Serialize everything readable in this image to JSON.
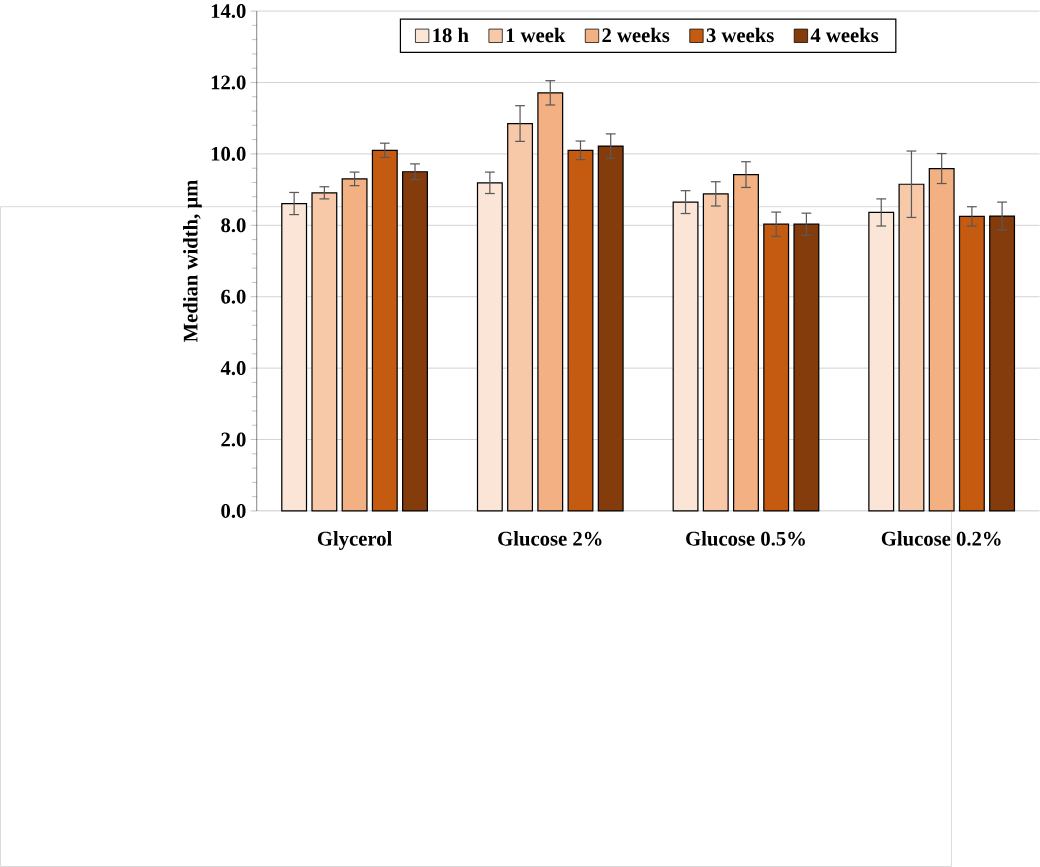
{
  "chart_data": {
    "type": "bar",
    "ylabel": "Median width, μm",
    "categories": [
      "Glycerol",
      "Glucose 2%",
      "Glucose 0.5%",
      "Glucose 0.2%"
    ],
    "series": [
      {
        "name": "18 h",
        "color": "#fae5d6",
        "values": [
          8.61,
          9.19,
          8.65,
          8.36
        ],
        "errors": [
          0.31,
          0.3,
          0.32,
          0.38
        ]
      },
      {
        "name": "1 week",
        "color": "#f7c9a9",
        "values": [
          8.91,
          10.85,
          8.88,
          9.15
        ],
        "errors": [
          0.17,
          0.5,
          0.34,
          0.93
        ]
      },
      {
        "name": "2 weeks",
        "color": "#f2b083",
        "values": [
          9.3,
          11.71,
          9.42,
          9.59
        ],
        "errors": [
          0.19,
          0.34,
          0.36,
          0.42
        ]
      },
      {
        "name": "3 weeks",
        "color": "#c55a11",
        "values": [
          10.1,
          10.1,
          8.03,
          8.25
        ],
        "errors": [
          0.2,
          0.26,
          0.34,
          0.27
        ]
      },
      {
        "name": "4 weeks",
        "color": "#843c0c",
        "values": [
          9.5,
          10.22,
          8.03,
          8.26
        ],
        "errors": [
          0.22,
          0.34,
          0.31,
          0.39
        ]
      }
    ],
    "ylim": [
      0,
      14
    ],
    "yticks": [
      {
        "value": 0,
        "label": "0.0"
      },
      {
        "value": 2,
        "label": "2.0"
      },
      {
        "value": 4,
        "label": "4.0"
      },
      {
        "value": 6,
        "label": "6.0"
      },
      {
        "value": 8,
        "label": "8.0"
      },
      {
        "value": 10,
        "label": "10.0"
      },
      {
        "value": 12,
        "label": "12.0"
      },
      {
        "value": 14,
        "label": "14.0"
      }
    ],
    "grid": "y",
    "legend": "top"
  }
}
